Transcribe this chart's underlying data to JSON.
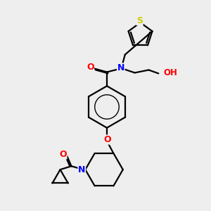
{
  "bg_color": "#eeeeee",
  "bond_color": "#000000",
  "atom_colors": {
    "O": "#ff0000",
    "N": "#0000ff",
    "S": "#cccc00",
    "H": "#555555",
    "C": "#000000"
  },
  "figsize": [
    3.0,
    3.0
  ],
  "dpi": 100
}
